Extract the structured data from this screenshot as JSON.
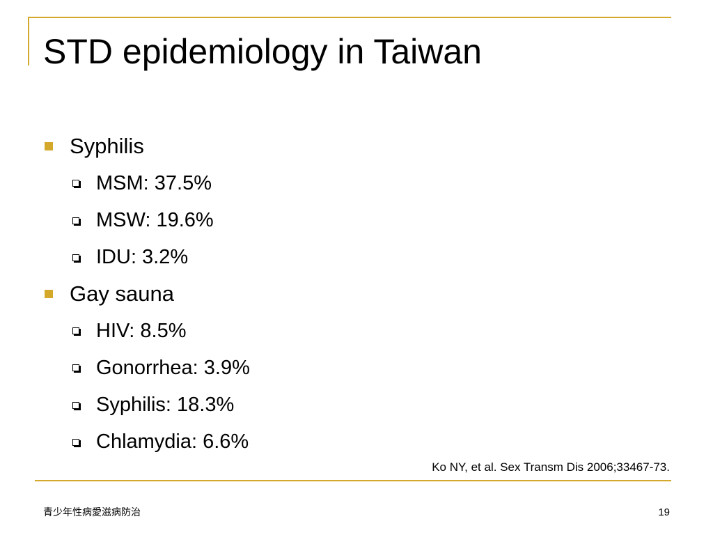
{
  "slide": {
    "title": "STD epidemiology in Taiwan",
    "sections": [
      {
        "heading": "Syphilis",
        "items": [
          "MSM: 37.5%",
          "MSW: 19.6%",
          "IDU: 3.2%"
        ]
      },
      {
        "heading": "Gay sauna",
        "items": [
          "HIV: 8.5%",
          "Gonorrhea: 3.9%",
          "Syphilis: 18.3%",
          "Chlamydia: 6.6%"
        ]
      }
    ],
    "citation": "Ko NY, et al. Sex Transm Dis 2006;33467-73.",
    "footer_text": "青少年性病愛滋病防治",
    "page_number": "19"
  },
  "colors": {
    "accent": "#d4a82a",
    "text": "#000000",
    "background": "#ffffff"
  }
}
